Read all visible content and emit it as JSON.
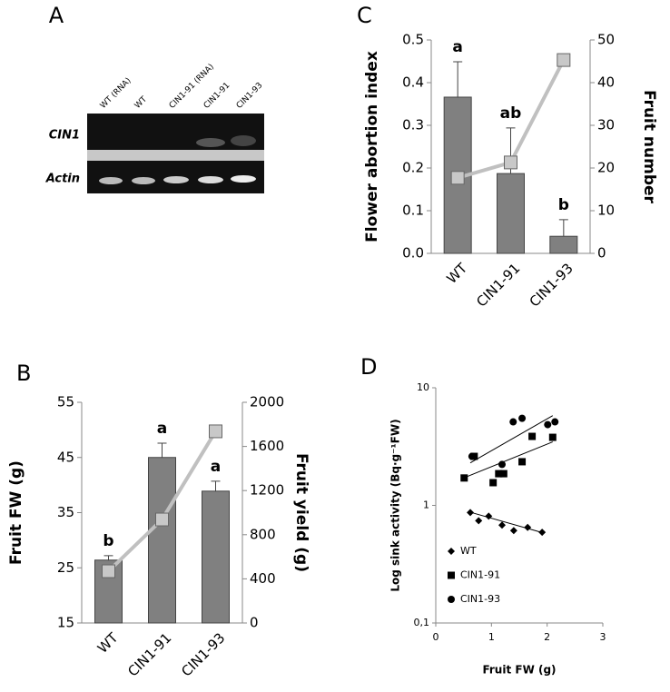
{
  "gel": {
    "panel_label": "A",
    "lane_labels": [
      "WT (RNA)",
      "WT",
      "CIN1-91 (RNA)",
      "CIN1-91",
      "CIN1-93"
    ],
    "row_labels": [
      "CIN1",
      "Actin"
    ]
  },
  "chart_data": [
    {
      "type": "bar_line",
      "panel_label": "B",
      "categories": [
        "WT",
        "CIN1-91",
        "CIN1-93"
      ],
      "ylabel": "Fruit FW (g)",
      "y2label": "Fruit yield (g)",
      "ylim": [
        15,
        55
      ],
      "yticks": [
        15,
        25,
        35,
        45,
        55
      ],
      "y2lim": [
        0,
        2000
      ],
      "y2ticks": [
        0,
        400,
        800,
        1200,
        1600,
        2000
      ],
      "series": [
        {
          "type": "bar",
          "color": "#808080",
          "values": [
            26.4,
            45.0,
            38.9
          ],
          "errors": [
            0.8,
            2.6,
            1.8
          ],
          "letters": [
            "b",
            "a",
            "a"
          ]
        },
        {
          "type": "line",
          "axis": "y2",
          "color": "#c0c0c0",
          "values": [
            469,
            938,
            1737
          ]
        }
      ]
    },
    {
      "type": "bar_line",
      "panel_label": "C",
      "categories": [
        "WT",
        "CIN1-91",
        "CIN1-93"
      ],
      "ylabel": "Flower abortion index",
      "y2label": "Fruit number",
      "ylim": [
        0,
        0.5
      ],
      "yticks": [
        {
          "value": 0,
          "label": "0.0"
        },
        0.1,
        0.2,
        0.3,
        0.4,
        0.5
      ],
      "y2lim": [
        0,
        50
      ],
      "y2ticks": [
        0,
        10,
        20,
        30,
        40,
        50
      ],
      "series": [
        {
          "type": "bar",
          "color": "#808080",
          "values": [
            0.366,
            0.187,
            0.04
          ],
          "errors": [
            0.083,
            0.107,
            0.039
          ],
          "letters": [
            "a",
            "ab",
            "b"
          ]
        },
        {
          "type": "line",
          "axis": "y2",
          "color": "#c0c0c0",
          "values": [
            17.7,
            21.3,
            45.3
          ]
        }
      ]
    },
    {
      "type": "scatter",
      "panel_label": "D",
      "log_scale": true,
      "xlabel": "Fruit FW (g)",
      "ylabel": "Log sink activity (Bq·g⁻¹FW)",
      "xlim": [
        0,
        3
      ],
      "xticks": [
        0,
        1,
        2,
        3
      ],
      "ylim": [
        0.1,
        10
      ],
      "yticks": [
        {
          "value": 0.1,
          "label": "0,1"
        },
        1,
        10
      ],
      "series": [
        {
          "name": "WT",
          "marker": "diamond",
          "color": "#000000",
          "x": [
            0.62,
            0.77,
            0.95,
            1.19,
            1.4,
            1.65,
            1.91
          ],
          "values": [
            0.87,
            0.74,
            0.81,
            0.68,
            0.61,
            0.65,
            0.59
          ]
        },
        {
          "name": "CIN1-91",
          "marker": "square",
          "color": "#000000",
          "x": [
            0.51,
            0.69,
            1.03,
            1.13,
            1.22,
            1.55,
            1.73,
            2.1
          ],
          "values": [
            1.71,
            2.61,
            1.56,
            1.86,
            1.86,
            2.35,
            3.86,
            3.79
          ]
        },
        {
          "name": "CIN1-93",
          "marker": "circle",
          "color": "#000000",
          "x": [
            0.65,
            1.19,
            1.39,
            1.55,
            2.01,
            2.14
          ],
          "values": [
            2.61,
            2.23,
            5.13,
            5.5,
            4.86,
            5.13
          ]
        }
      ],
      "trendlines": [
        {
          "x": [
            0.6,
            1.95
          ],
          "y": [
            0.88,
            0.58
          ]
        },
        {
          "x": [
            0.5,
            2.1
          ],
          "y": [
            1.71,
            3.47
          ]
        },
        {
          "x": [
            0.62,
            2.1
          ],
          "y": [
            2.3,
            5.8
          ]
        }
      ]
    }
  ]
}
